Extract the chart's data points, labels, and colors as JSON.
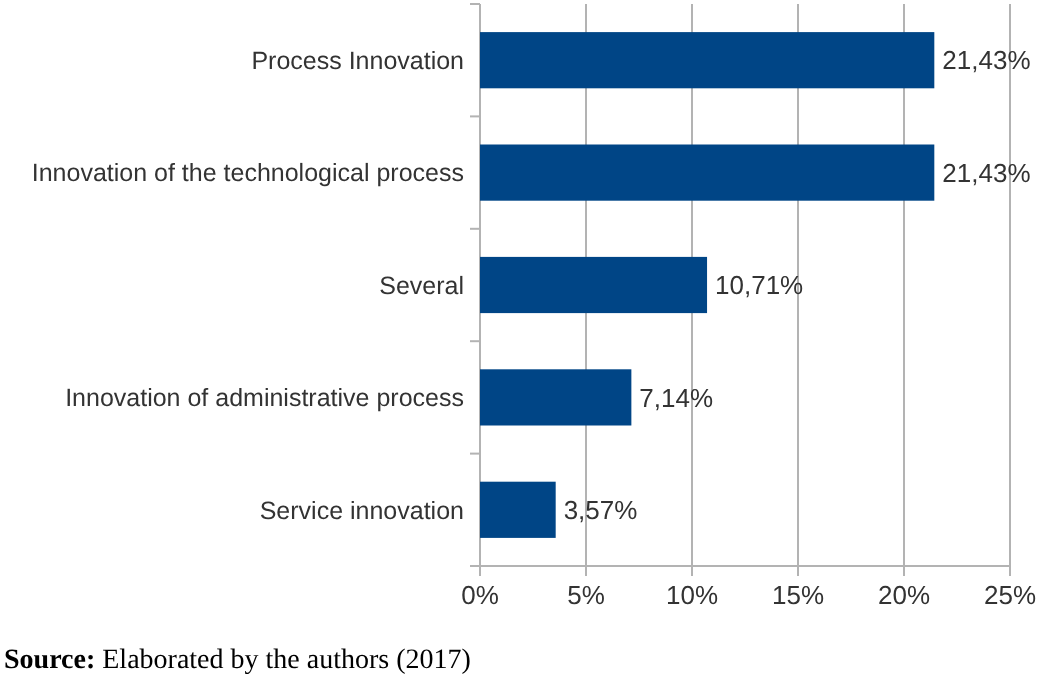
{
  "chart_data": {
    "type": "bar",
    "orientation": "horizontal",
    "categories": [
      "Process Innovation",
      "Innovation of the technological process",
      "Several",
      "Innovation of administrative process",
      "Service innovation"
    ],
    "values": [
      21.43,
      21.43,
      10.71,
      7.14,
      3.57
    ],
    "value_labels": [
      "21,43%",
      "21,43%",
      "10,71%",
      "7,14%",
      "3,57%"
    ],
    "color": "#004586",
    "xlim": [
      0,
      25
    ],
    "xticks": [
      {
        "value": 0,
        "label": "0%"
      },
      {
        "value": 5,
        "label": "5%"
      },
      {
        "value": 10,
        "label": "10%"
      },
      {
        "value": 15,
        "label": "15%"
      },
      {
        "value": 20,
        "label": "20%"
      },
      {
        "value": 25,
        "label": "25%"
      }
    ],
    "grid": "x",
    "annotations": [
      "Source: Elaborated by the authors (2017)"
    ]
  }
}
